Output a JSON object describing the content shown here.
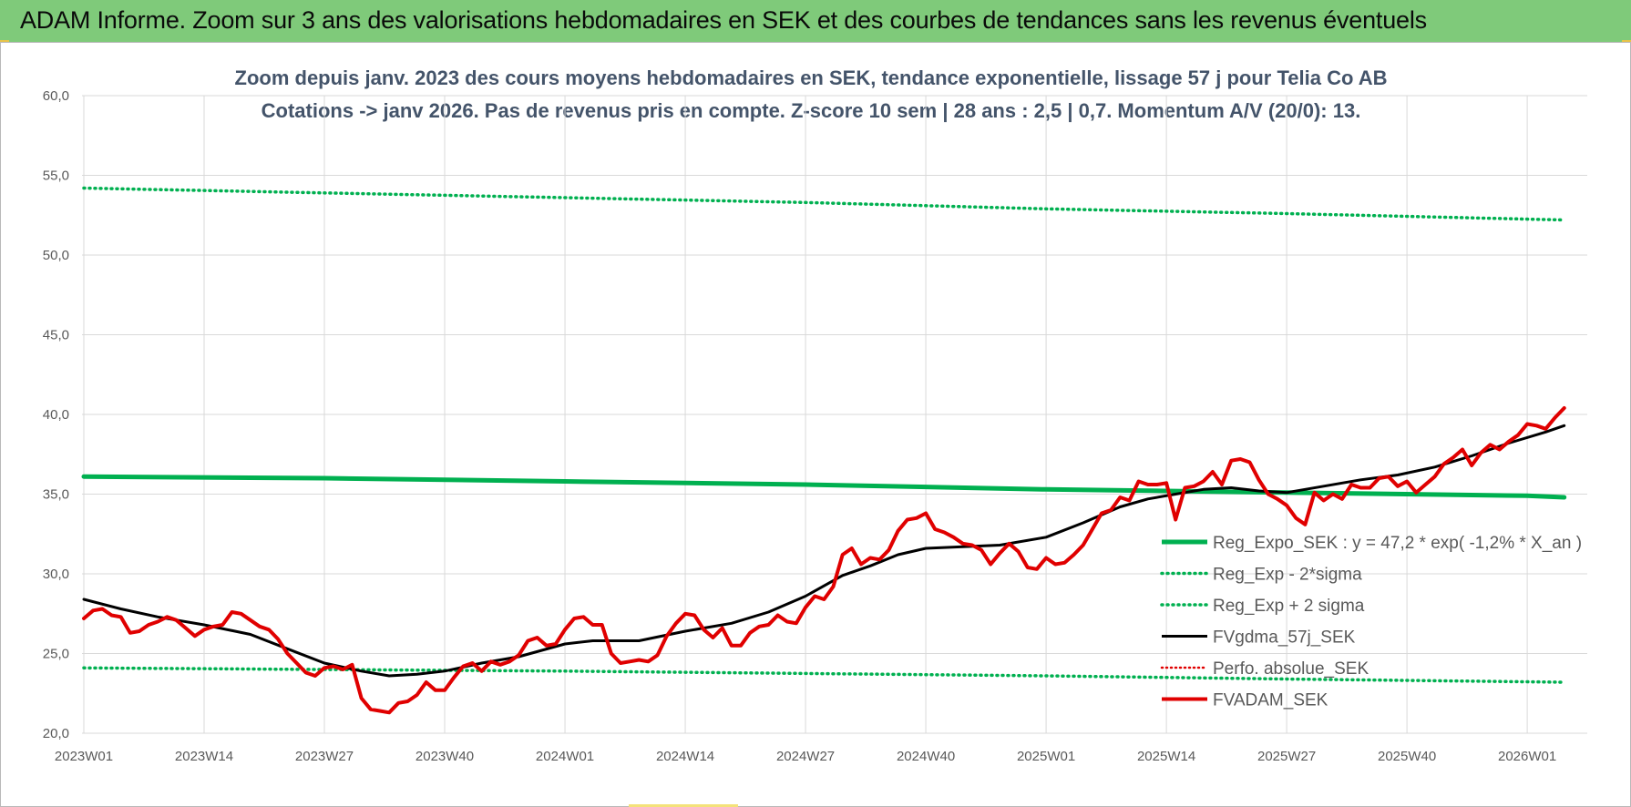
{
  "header": {
    "title": "ADAM Informe. Zoom sur 3 ans des valorisations hebdomadaires en SEK et des courbes de tendances sans les revenus éventuels"
  },
  "colors": {
    "banner": "#7fca7a",
    "trend": "#00b050",
    "sigma": "#00b050",
    "smoothed": "#000000",
    "perfo": "#e00000",
    "price": "#e00000",
    "grid": "#d9d9d9",
    "subtitle": "#44546a"
  },
  "chart_data": {
    "type": "line",
    "title_line1": "Zoom depuis janv. 2023 des cours moyens hebdomadaires en SEK, tendance exponentielle, lissage 57 j pour Telia Co AB",
    "title_line2": "Cotations -> janv 2026. Pas de revenus pris en compte. Z-score 10 sem | 28 ans : 2,5 | 0,7. Momentum A/V (20/0): 13.",
    "ylim": [
      20,
      60
    ],
    "y_ticks": [
      "20,0",
      "25,0",
      "30,0",
      "35,0",
      "40,0",
      "45,0",
      "50,0",
      "55,0",
      "60,0"
    ],
    "x_ticks": [
      {
        "label": "2023W01",
        "week": 0
      },
      {
        "label": "2023W14",
        "week": 13
      },
      {
        "label": "2023W27",
        "week": 26
      },
      {
        "label": "2023W40",
        "week": 39
      },
      {
        "label": "2024W01",
        "week": 52
      },
      {
        "label": "2024W14",
        "week": 65
      },
      {
        "label": "2024W27",
        "week": 78
      },
      {
        "label": "2024W40",
        "week": 91
      },
      {
        "label": "2025W01",
        "week": 104
      },
      {
        "label": "2025W14",
        "week": 117
      },
      {
        "label": "2025W27",
        "week": 130
      },
      {
        "label": "2025W40",
        "week": 143
      },
      {
        "label": "2026W01",
        "week": 156
      }
    ],
    "grid": true,
    "legend_position": "right",
    "series": [
      {
        "name": "Reg_Expo_SEK : y = 47,2 * exp( -1,2% *  X_an )",
        "key": "trend",
        "style": "thick",
        "points": [
          [
            0,
            36.1
          ],
          [
            26,
            36.0
          ],
          [
            52,
            35.8
          ],
          [
            78,
            35.6
          ],
          [
            104,
            35.3
          ],
          [
            130,
            35.1
          ],
          [
            156,
            34.9
          ],
          [
            160,
            34.8
          ]
        ]
      },
      {
        "name": "Reg_Exp - 2*sigma",
        "key": "lower",
        "style": "dotted",
        "points": [
          [
            0,
            24.1
          ],
          [
            52,
            23.9
          ],
          [
            104,
            23.6
          ],
          [
            130,
            23.4
          ],
          [
            160,
            23.2
          ]
        ]
      },
      {
        "name": "Reg_Exp + 2 sigma",
        "key": "upper",
        "style": "dotted",
        "points": [
          [
            0,
            54.2
          ],
          [
            26,
            53.9
          ],
          [
            52,
            53.6
          ],
          [
            78,
            53.3
          ],
          [
            104,
            52.9
          ],
          [
            130,
            52.6
          ],
          [
            160,
            52.2
          ]
        ]
      },
      {
        "name": "FVgdma_57j_SEK",
        "key": "smooth",
        "style": "solid",
        "points": [
          [
            0,
            28.4
          ],
          [
            4,
            27.8
          ],
          [
            8,
            27.3
          ],
          [
            13,
            26.8
          ],
          [
            18,
            26.2
          ],
          [
            22,
            25.3
          ],
          [
            26,
            24.4
          ],
          [
            30,
            23.9
          ],
          [
            33,
            23.6
          ],
          [
            36,
            23.7
          ],
          [
            39,
            23.9
          ],
          [
            43,
            24.4
          ],
          [
            47,
            24.8
          ],
          [
            52,
            25.6
          ],
          [
            55,
            25.8
          ],
          [
            60,
            25.8
          ],
          [
            65,
            26.4
          ],
          [
            70,
            26.9
          ],
          [
            74,
            27.6
          ],
          [
            78,
            28.6
          ],
          [
            82,
            29.9
          ],
          [
            85,
            30.5
          ],
          [
            88,
            31.2
          ],
          [
            91,
            31.6
          ],
          [
            95,
            31.7
          ],
          [
            99,
            31.8
          ],
          [
            104,
            32.3
          ],
          [
            108,
            33.2
          ],
          [
            112,
            34.2
          ],
          [
            115,
            34.7
          ],
          [
            118,
            35.0
          ],
          [
            121,
            35.3
          ],
          [
            124,
            35.4
          ],
          [
            127,
            35.2
          ],
          [
            130,
            35.1
          ],
          [
            134,
            35.5
          ],
          [
            138,
            35.9
          ],
          [
            142,
            36.2
          ],
          [
            146,
            36.7
          ],
          [
            150,
            37.4
          ],
          [
            154,
            38.2
          ],
          [
            158,
            38.9
          ],
          [
            160,
            39.3
          ]
        ]
      },
      {
        "name": "Perfo. absolue_SEK",
        "key": "perfo",
        "style": "dotted-red",
        "points": []
      },
      {
        "name": "FVADAM_SEK",
        "key": "price",
        "style": "thick-red",
        "points": [
          [
            0,
            27.2
          ],
          [
            1,
            27.7
          ],
          [
            2,
            27.8
          ],
          [
            3,
            27.4
          ],
          [
            4,
            27.3
          ],
          [
            5,
            26.3
          ],
          [
            6,
            26.4
          ],
          [
            7,
            26.8
          ],
          [
            8,
            27.0
          ],
          [
            9,
            27.3
          ],
          [
            10,
            27.1
          ],
          [
            11,
            26.6
          ],
          [
            12,
            26.1
          ],
          [
            13,
            26.5
          ],
          [
            14,
            26.7
          ],
          [
            15,
            26.8
          ],
          [
            16,
            27.6
          ],
          [
            17,
            27.5
          ],
          [
            18,
            27.1
          ],
          [
            19,
            26.7
          ],
          [
            20,
            26.5
          ],
          [
            21,
            25.9
          ],
          [
            22,
            25.0
          ],
          [
            23,
            24.4
          ],
          [
            24,
            23.8
          ],
          [
            25,
            23.6
          ],
          [
            26,
            24.1
          ],
          [
            27,
            24.2
          ],
          [
            28,
            24.0
          ],
          [
            29,
            24.3
          ],
          [
            30,
            22.2
          ],
          [
            31,
            21.5
          ],
          [
            32,
            21.4
          ],
          [
            33,
            21.3
          ],
          [
            34,
            21.9
          ],
          [
            35,
            22.0
          ],
          [
            36,
            22.4
          ],
          [
            37,
            23.2
          ],
          [
            38,
            22.7
          ],
          [
            39,
            22.7
          ],
          [
            40,
            23.5
          ],
          [
            41,
            24.2
          ],
          [
            42,
            24.4
          ],
          [
            43,
            23.9
          ],
          [
            44,
            24.5
          ],
          [
            45,
            24.3
          ],
          [
            46,
            24.5
          ],
          [
            47,
            24.9
          ],
          [
            48,
            25.8
          ],
          [
            49,
            26.0
          ],
          [
            50,
            25.5
          ],
          [
            51,
            25.6
          ],
          [
            52,
            26.5
          ],
          [
            53,
            27.2
          ],
          [
            54,
            27.3
          ],
          [
            55,
            26.8
          ],
          [
            56,
            26.8
          ],
          [
            57,
            25.0
          ],
          [
            58,
            24.4
          ],
          [
            59,
            24.5
          ],
          [
            60,
            24.6
          ],
          [
            61,
            24.5
          ],
          [
            62,
            24.9
          ],
          [
            63,
            26.1
          ],
          [
            64,
            26.9
          ],
          [
            65,
            27.5
          ],
          [
            66,
            27.4
          ],
          [
            67,
            26.5
          ],
          [
            68,
            26.0
          ],
          [
            69,
            26.6
          ],
          [
            70,
            25.5
          ],
          [
            71,
            25.5
          ],
          [
            72,
            26.3
          ],
          [
            73,
            26.7
          ],
          [
            74,
            26.8
          ],
          [
            75,
            27.4
          ],
          [
            76,
            27.0
          ],
          [
            77,
            26.9
          ],
          [
            78,
            27.9
          ],
          [
            79,
            28.6
          ],
          [
            80,
            28.4
          ],
          [
            81,
            29.2
          ],
          [
            82,
            31.2
          ],
          [
            83,
            31.6
          ],
          [
            84,
            30.6
          ],
          [
            85,
            31.0
          ],
          [
            86,
            30.9
          ],
          [
            87,
            31.5
          ],
          [
            88,
            32.7
          ],
          [
            89,
            33.4
          ],
          [
            90,
            33.5
          ],
          [
            91,
            33.8
          ],
          [
            92,
            32.8
          ],
          [
            93,
            32.6
          ],
          [
            94,
            32.3
          ],
          [
            95,
            31.9
          ],
          [
            96,
            31.8
          ],
          [
            97,
            31.5
          ],
          [
            98,
            30.6
          ],
          [
            99,
            31.3
          ],
          [
            100,
            31.9
          ],
          [
            101,
            31.4
          ],
          [
            102,
            30.4
          ],
          [
            103,
            30.3
          ],
          [
            104,
            31.0
          ],
          [
            105,
            30.6
          ],
          [
            106,
            30.7
          ],
          [
            107,
            31.2
          ],
          [
            108,
            31.8
          ],
          [
            109,
            32.8
          ],
          [
            110,
            33.8
          ],
          [
            111,
            34.0
          ],
          [
            112,
            34.8
          ],
          [
            113,
            34.6
          ],
          [
            114,
            35.8
          ],
          [
            115,
            35.6
          ],
          [
            116,
            35.6
          ],
          [
            117,
            35.7
          ],
          [
            118,
            33.4
          ],
          [
            119,
            35.4
          ],
          [
            120,
            35.5
          ],
          [
            121,
            35.8
          ],
          [
            122,
            36.4
          ],
          [
            123,
            35.6
          ],
          [
            124,
            37.1
          ],
          [
            125,
            37.2
          ],
          [
            126,
            37.0
          ],
          [
            127,
            35.9
          ],
          [
            128,
            35.0
          ],
          [
            129,
            34.7
          ],
          [
            130,
            34.3
          ],
          [
            131,
            33.5
          ],
          [
            132,
            33.1
          ],
          [
            133,
            35.1
          ],
          [
            134,
            34.6
          ],
          [
            135,
            35.0
          ],
          [
            136,
            34.7
          ],
          [
            137,
            35.6
          ],
          [
            138,
            35.4
          ],
          [
            139,
            35.4
          ],
          [
            140,
            36.0
          ],
          [
            141,
            36.1
          ],
          [
            142,
            35.5
          ],
          [
            143,
            35.8
          ],
          [
            144,
            35.1
          ],
          [
            145,
            35.6
          ],
          [
            146,
            36.1
          ],
          [
            147,
            36.9
          ],
          [
            148,
            37.3
          ],
          [
            149,
            37.8
          ],
          [
            150,
            36.8
          ],
          [
            151,
            37.6
          ],
          [
            152,
            38.1
          ],
          [
            153,
            37.8
          ],
          [
            154,
            38.3
          ],
          [
            155,
            38.7
          ],
          [
            156,
            39.4
          ],
          [
            157,
            39.3
          ],
          [
            158,
            39.1
          ],
          [
            159,
            39.8
          ],
          [
            160,
            40.4
          ]
        ]
      }
    ]
  }
}
